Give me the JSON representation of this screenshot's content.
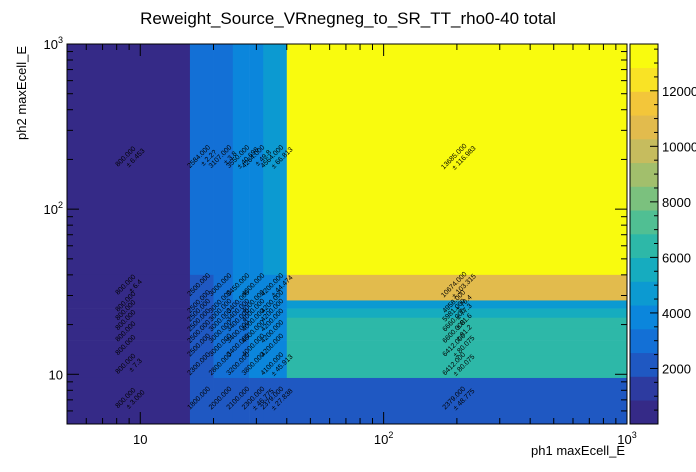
{
  "chart_data": {
    "type": "heatmap",
    "title": "Reweight_Source_VRnegneg_to_SR_TT_rho0-40 total",
    "xlabel": "ph1 maxEcell_E",
    "ylabel": "ph2 maxEcell_E",
    "xscale": "log",
    "yscale": "log",
    "xlim": [
      5,
      1000
    ],
    "ylim": [
      5,
      1000
    ],
    "x_ticks": [
      {
        "value": 10,
        "label": "10"
      },
      {
        "value": 100,
        "label": "10",
        "exp": "2"
      },
      {
        "value": 1000,
        "label": "10",
        "exp": "3"
      }
    ],
    "y_ticks": [
      {
        "value": 10,
        "label": "10"
      },
      {
        "value": 100,
        "label": "10",
        "exp": "2"
      },
      {
        "value": 1000,
        "label": "10",
        "exp": "3"
      }
    ],
    "colorbar": {
      "min": 0,
      "max": 13685,
      "ticks": [
        2000,
        4000,
        6000,
        8000,
        10000,
        12000
      ],
      "tick_labels": [
        "2000",
        "4000",
        "6000",
        "8000",
        "10000",
        "12000"
      ]
    },
    "x_edges": [
      5,
      16,
      20,
      24,
      28,
      32,
      40,
      1000
    ],
    "y_edges": [
      5,
      9.5,
      13,
      16,
      19,
      22,
      25,
      28,
      40,
      1000
    ],
    "cells": [
      {
        "xi": 0,
        "yi": 8,
        "value": 800,
        "error": "± 6.453"
      },
      {
        "xi": 1,
        "yi": 8,
        "value": 2584,
        "error": "± 2.2?"
      },
      {
        "xi": 2,
        "yi": 8,
        "value": 3107,
        "error": "± 3.8"
      },
      {
        "xi": 3,
        "yi": 8,
        "value": 3550,
        "error": "± 40.698"
      },
      {
        "xi": 4,
        "yi": 8,
        "value": 4264,
        "error": "± 49.8"
      },
      {
        "xi": 5,
        "yi": 8,
        "value": 4564,
        "error": "± 66.813"
      },
      {
        "xi": 6,
        "yi": 8,
        "value": 13685,
        "label": "13685.000",
        "error": "± 116.983"
      },
      {
        "xi": 0,
        "yi": 7,
        "value": 800,
        "error": "± 6.4"
      },
      {
        "xi": 1,
        "yi": 7,
        "value": 2500,
        "error": ""
      },
      {
        "xi": 2,
        "yi": 7,
        "value": 3000,
        "error": ""
      },
      {
        "xi": 3,
        "yi": 7,
        "value": 3450,
        "error": ""
      },
      {
        "xi": 4,
        "yi": 7,
        "value": 4000,
        "error": ""
      },
      {
        "xi": 5,
        "yi": 7,
        "value": 4200,
        "error": "± 44.474"
      },
      {
        "xi": 6,
        "yi": 7,
        "value": 10674,
        "label": "10674.000",
        "error": "± 103.315"
      },
      {
        "xi": 0,
        "yi": 6,
        "value": 800,
        "error": ""
      },
      {
        "xi": 1,
        "yi": 6,
        "value": 2500,
        "error": ""
      },
      {
        "xi": 2,
        "yi": 6,
        "value": 3000,
        "error": ""
      },
      {
        "xi": 3,
        "yi": 6,
        "value": 3400,
        "error": ""
      },
      {
        "xi": 4,
        "yi": 6,
        "value": 4000,
        "error": ""
      },
      {
        "xi": 5,
        "yi": 6,
        "value": 4200,
        "error": ""
      },
      {
        "xi": 6,
        "yi": 6,
        "value": 4958,
        "label": "4958.000",
        "error": "± 70.4"
      },
      {
        "xi": 0,
        "yi": 5,
        "value": 800,
        "error": ""
      },
      {
        "xi": 1,
        "yi": 5,
        "value": 2500,
        "error": ""
      },
      {
        "xi": 2,
        "yi": 5,
        "value": 3000,
        "error": ""
      },
      {
        "xi": 3,
        "yi": 5,
        "value": 3400,
        "error": ""
      },
      {
        "xi": 4,
        "yi": 5,
        "value": 4000,
        "error": ""
      },
      {
        "xi": 5,
        "yi": 5,
        "value": 4200,
        "error": ""
      },
      {
        "xi": 6,
        "yi": 5,
        "value": 5981,
        "label": "5981.000",
        "error": "± 77.3"
      },
      {
        "xi": 0,
        "yi": 4,
        "value": 800,
        "error": ""
      },
      {
        "xi": 1,
        "yi": 4,
        "value": 2500,
        "error": ""
      },
      {
        "xi": 2,
        "yi": 4,
        "value": 3000,
        "error": ""
      },
      {
        "xi": 3,
        "yi": 4,
        "value": 3400,
        "error": ""
      },
      {
        "xi": 4,
        "yi": 4,
        "value": 4000,
        "error": ""
      },
      {
        "xi": 5,
        "yi": 4,
        "value": 4200,
        "error": ""
      },
      {
        "xi": 6,
        "yi": 4,
        "value": 6660,
        "label": "6660.000",
        "error": "± 81.6"
      },
      {
        "xi": 0,
        "yi": 3,
        "value": 800,
        "error": ""
      },
      {
        "xi": 1,
        "yi": 3,
        "value": 2500,
        "error": ""
      },
      {
        "xi": 2,
        "yi": 3,
        "value": 3000,
        "error": ""
      },
      {
        "xi": 3,
        "yi": 3,
        "value": 3400,
        "error": ""
      },
      {
        "xi": 4,
        "yi": 3,
        "value": 4000,
        "error": ""
      },
      {
        "xi": 5,
        "yi": 3,
        "value": 4200,
        "error": ""
      },
      {
        "xi": 6,
        "yi": 3,
        "value": 6600,
        "label": "6600.000",
        "error": "± 81.2"
      },
      {
        "xi": 0,
        "yi": 2,
        "value": 800,
        "error": ""
      },
      {
        "xi": 1,
        "yi": 2,
        "value": 2500,
        "error": ""
      },
      {
        "xi": 2,
        "yi": 2,
        "value": 3000,
        "error": ""
      },
      {
        "xi": 3,
        "yi": 2,
        "value": 3400,
        "error": ""
      },
      {
        "xi": 4,
        "yi": 2,
        "value": 4000,
        "error": ""
      },
      {
        "xi": 5,
        "yi": 2,
        "value": 4200,
        "error": ""
      },
      {
        "xi": 6,
        "yi": 2,
        "value": 6412,
        "label": "6412.000",
        "error": "± 80.075"
      },
      {
        "xi": 0,
        "yi": 1,
        "value": 800,
        "error": "± 7.3"
      },
      {
        "xi": 1,
        "yi": 1,
        "value": 2300,
        "error": ""
      },
      {
        "xi": 2,
        "yi": 1,
        "value": 2800,
        "error": ""
      },
      {
        "xi": 3,
        "yi": 1,
        "value": 3200,
        "error": ""
      },
      {
        "xi": 4,
        "yi": 1,
        "value": 3800,
        "error": ""
      },
      {
        "xi": 5,
        "yi": 1,
        "value": 4100,
        "error": "± 45.913"
      },
      {
        "xi": 6,
        "yi": 1,
        "value": 6412,
        "label": "6412.000",
        "error": "± 80.075"
      },
      {
        "xi": 0,
        "yi": 0,
        "value": 800,
        "error": "± 3.000"
      },
      {
        "xi": 1,
        "yi": 0,
        "value": 1800,
        "error": ""
      },
      {
        "xi": 2,
        "yi": 0,
        "value": 2000,
        "error": ""
      },
      {
        "xi": 3,
        "yi": 0,
        "value": 2100,
        "error": ""
      },
      {
        "xi": 4,
        "yi": 0,
        "value": 2300,
        "error": "± 46.775"
      },
      {
        "xi": 5,
        "yi": 0,
        "value": 2379,
        "error": "± 27.838"
      },
      {
        "xi": 6,
        "yi": 0,
        "value": 2379,
        "label": "2379.000",
        "error": "± 48.775"
      }
    ]
  }
}
